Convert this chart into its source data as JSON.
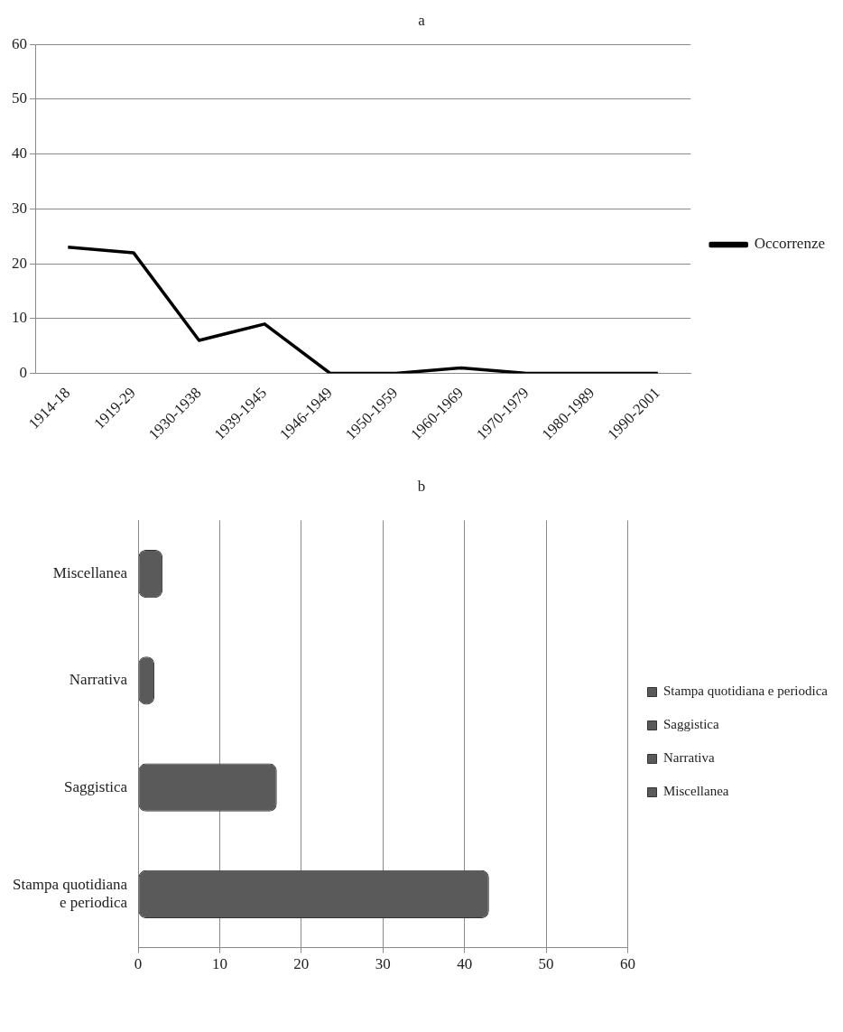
{
  "chart_data": [
    {
      "type": "line",
      "title": "a",
      "categories": [
        "1914-18",
        "1919-29",
        "1930-1938",
        "1939-1945",
        "1946-1949",
        "1950-1959",
        "1960-1969",
        "1970-1979",
        "1980-1989",
        "1990-2001"
      ],
      "series": [
        {
          "name": "Occorrenze",
          "color": "#000000",
          "values": [
            23,
            22,
            6,
            9,
            0,
            0,
            1,
            0,
            0,
            0
          ]
        }
      ],
      "ylim": [
        0,
        60
      ],
      "yticks": [
        0,
        10,
        20,
        30,
        40,
        50,
        60
      ],
      "grid": "y",
      "legend": "right",
      "marker": "none",
      "line_style": "solid"
    },
    {
      "type": "bar",
      "title": "b",
      "orientation": "horizontal",
      "categories": [
        "Miscellanea",
        "Narrativa",
        "Saggistica",
        "Stampa quotidiana e periodica"
      ],
      "series": [
        {
          "name": "Stampa quotidiana e periodica",
          "color": "#5a5a5a",
          "values": [
            null,
            null,
            null,
            43
          ]
        },
        {
          "name": "Saggistica",
          "color": "#5a5a5a",
          "values": [
            null,
            null,
            17,
            null
          ]
        },
        {
          "name": "Narrativa",
          "color": "#5a5a5a",
          "values": [
            null,
            2,
            null,
            null
          ]
        },
        {
          "name": "Miscellanea",
          "color": "#5a5a5a",
          "values": [
            3,
            null,
            null,
            null
          ]
        }
      ],
      "xlim": [
        0,
        60
      ],
      "xticks": [
        0,
        10,
        20,
        30,
        40,
        50,
        60
      ],
      "grid": "x",
      "legend": "right"
    }
  ]
}
